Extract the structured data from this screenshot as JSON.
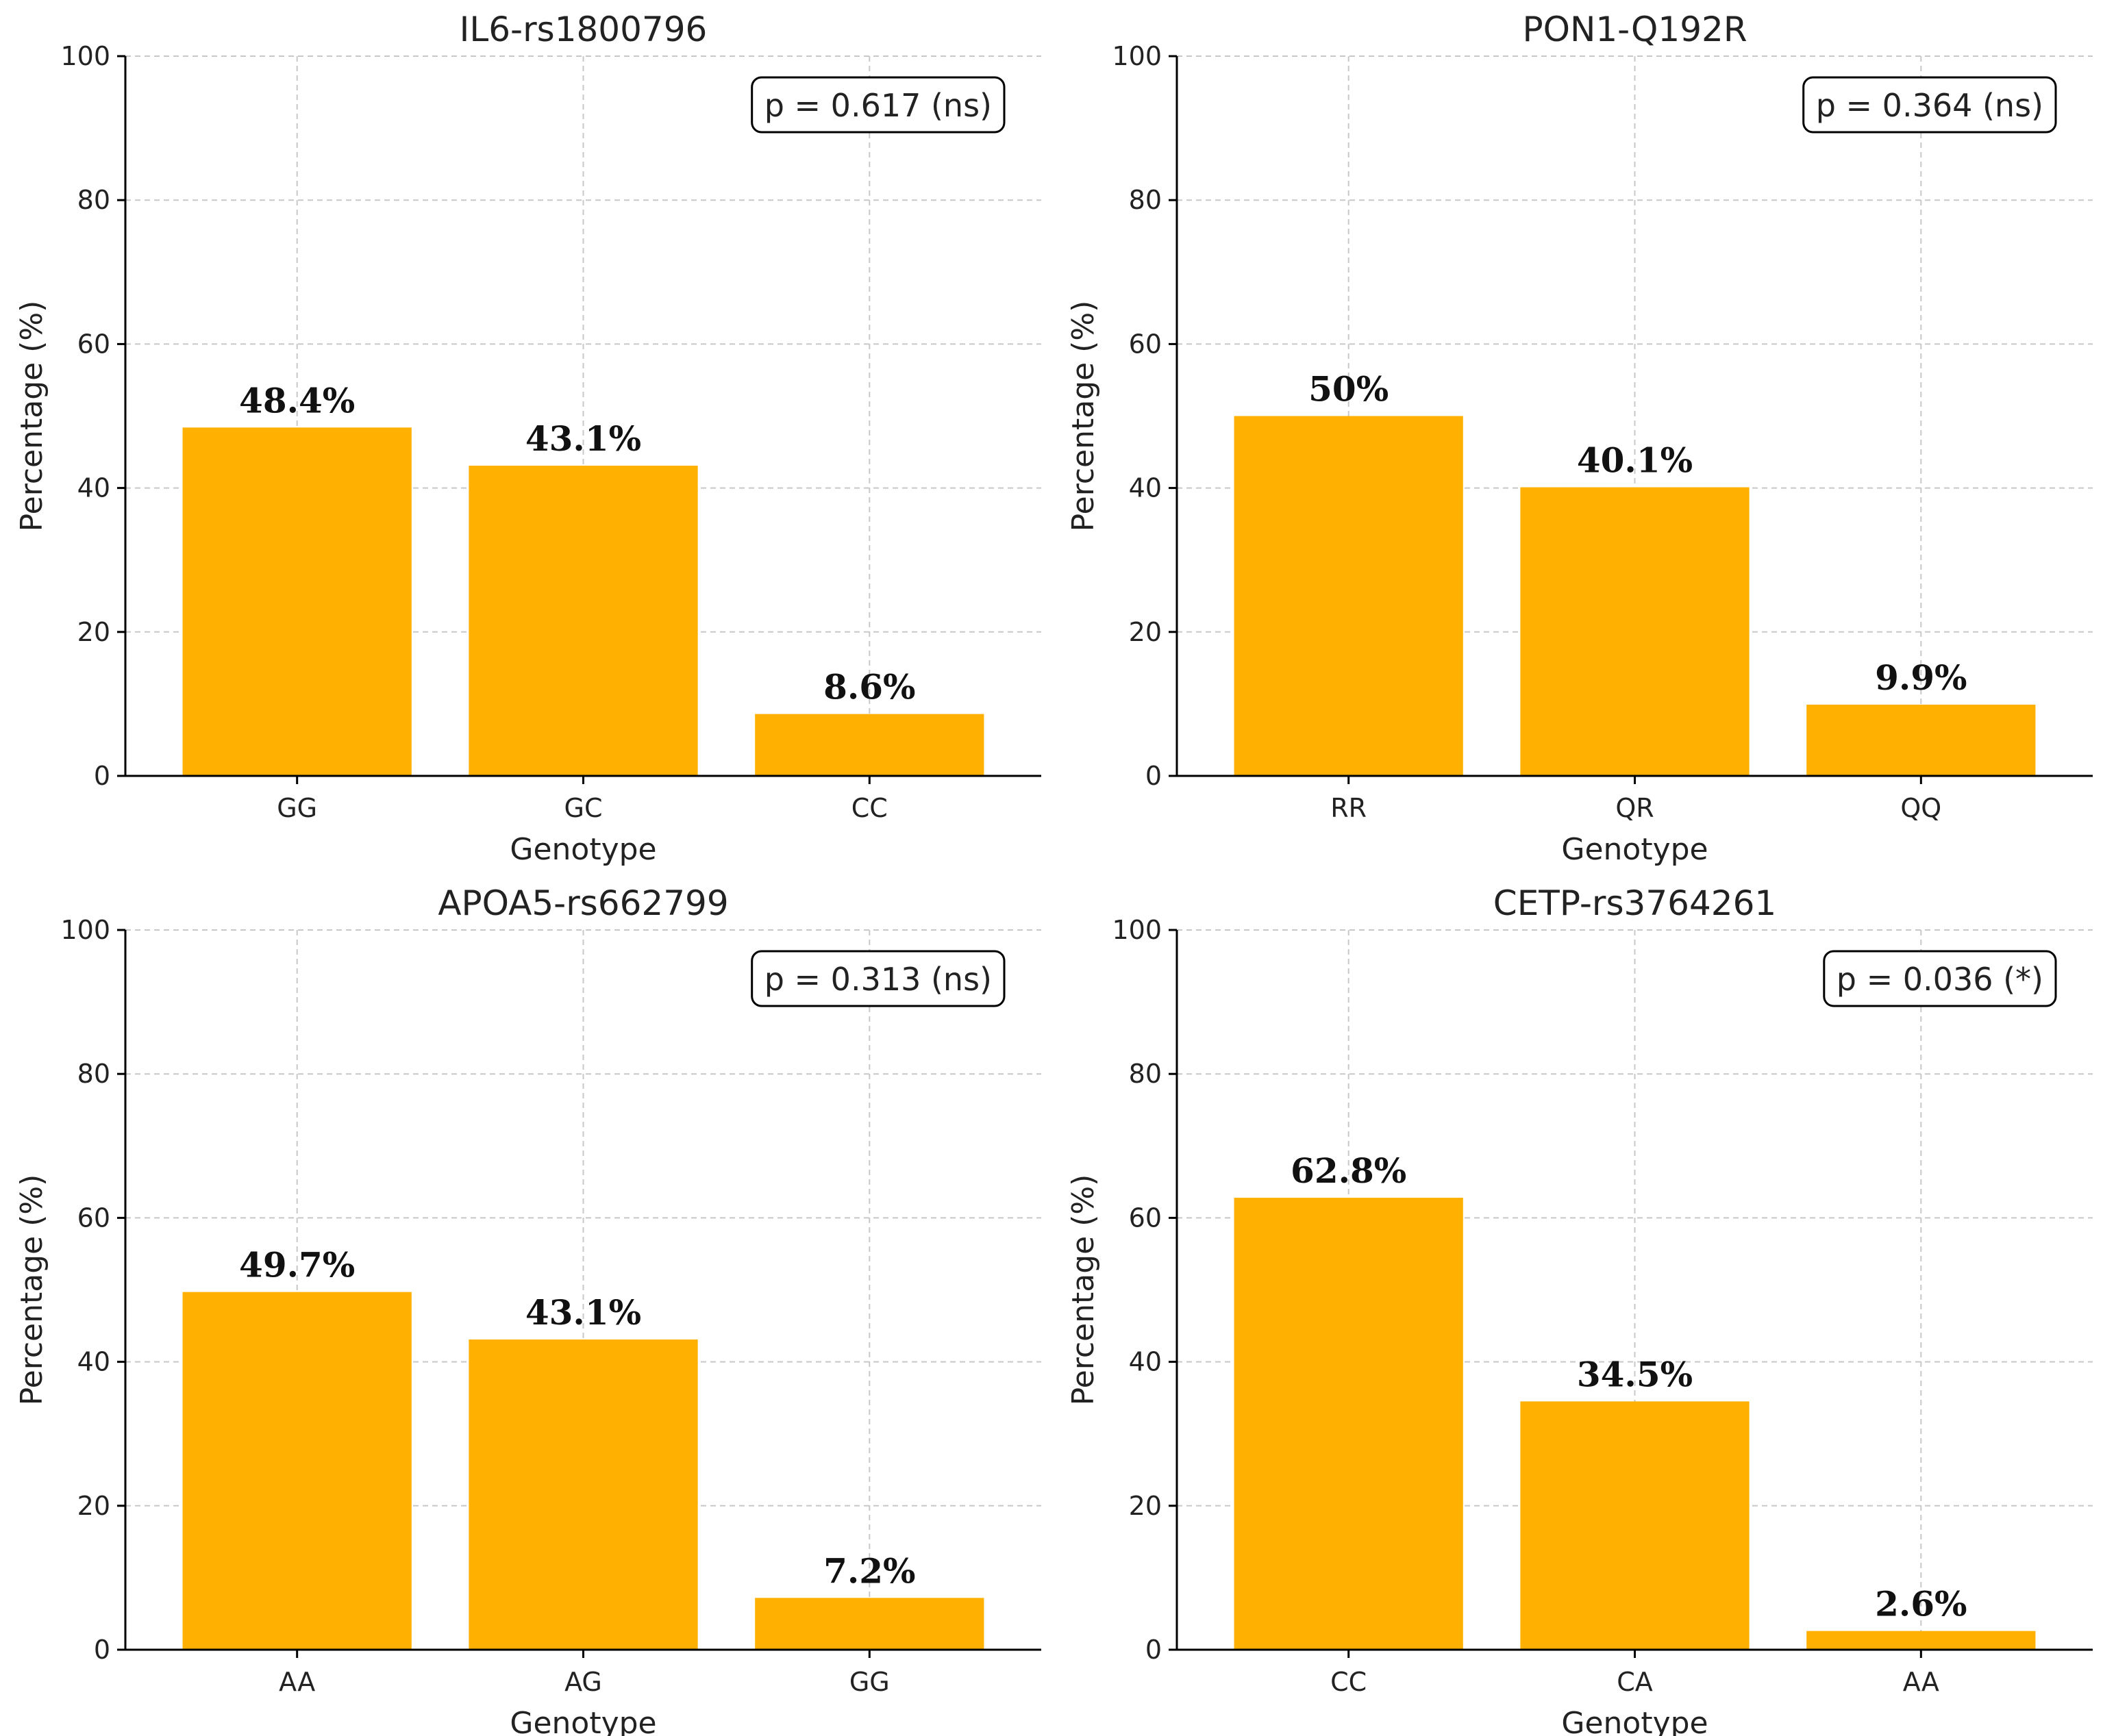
{
  "chart_data": [
    {
      "type": "bar",
      "title": "IL6-rs1800796",
      "xlabel": "Genotype",
      "ylabel": "Percentage (%)",
      "categories": [
        "GG",
        "GC",
        "CC"
      ],
      "values": [
        48.4,
        43.1,
        8.6
      ],
      "data_labels": [
        "48.4%",
        "43.1%",
        "8.6%"
      ],
      "ylim": [
        0,
        100
      ],
      "yticks": [
        0,
        20,
        40,
        60,
        80,
        100
      ],
      "grid": true,
      "annotation": "p = 0.617 (ns)",
      "annotation_position": "top-right",
      "color": "#FFB000"
    },
    {
      "type": "bar",
      "title": "PON1-Q192R",
      "xlabel": "Genotype",
      "ylabel": "Percentage (%)",
      "categories": [
        "RR",
        "QR",
        "QQ"
      ],
      "values": [
        50,
        40.1,
        9.9
      ],
      "data_labels": [
        "50%",
        "40.1%",
        "9.9%"
      ],
      "ylim": [
        0,
        100
      ],
      "yticks": [
        0,
        20,
        40,
        60,
        80,
        100
      ],
      "grid": true,
      "annotation": "p = 0.364 (ns)",
      "annotation_position": "top-right",
      "color": "#FFB000"
    },
    {
      "type": "bar",
      "title": "APOA5-rs662799",
      "xlabel": "Genotype",
      "ylabel": "Percentage (%)",
      "categories": [
        "AA",
        "AG",
        "GG"
      ],
      "values": [
        49.7,
        43.1,
        7.2
      ],
      "data_labels": [
        "49.7%",
        "43.1%",
        "7.2%"
      ],
      "ylim": [
        0,
        100
      ],
      "yticks": [
        0,
        20,
        40,
        60,
        80,
        100
      ],
      "grid": true,
      "annotation": "p = 0.313 (ns)",
      "annotation_position": "top-right",
      "color": "#FFB000"
    },
    {
      "type": "bar",
      "title": "CETP-rs3764261",
      "xlabel": "Genotype",
      "ylabel": "Percentage (%)",
      "categories": [
        "CC",
        "CA",
        "AA"
      ],
      "values": [
        62.8,
        34.5,
        2.6
      ],
      "data_labels": [
        "62.8%",
        "34.5%",
        "2.6%"
      ],
      "ylim": [
        0,
        100
      ],
      "yticks": [
        0,
        20,
        40,
        60,
        80,
        100
      ],
      "grid": true,
      "annotation": "p = 0.036 (*)",
      "annotation_position": "top-right",
      "color": "#FFB000"
    }
  ]
}
